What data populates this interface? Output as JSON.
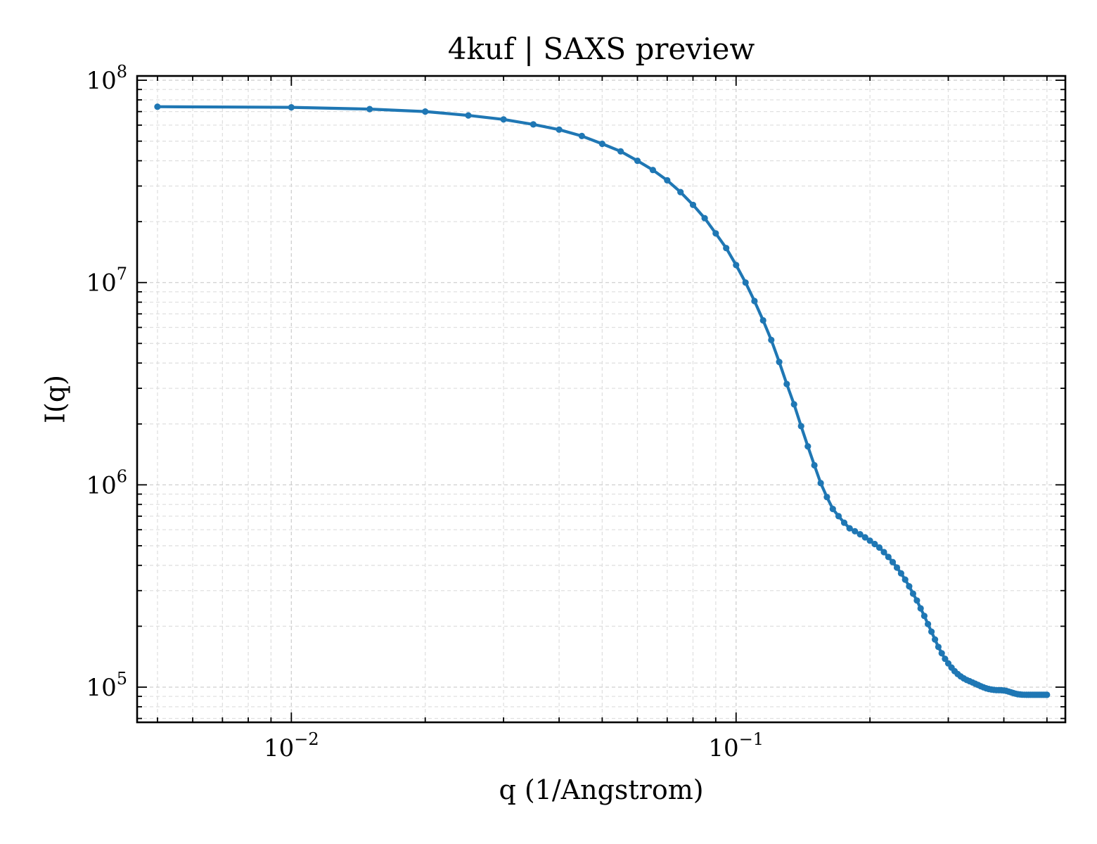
{
  "chart_data": {
    "type": "line",
    "title": "4kuf | SAXS preview",
    "xlabel": "q (1/Angstrom)",
    "ylabel": "I(q)",
    "xscale": "log",
    "yscale": "log",
    "xlim": [
      0.0045,
      0.55
    ],
    "ylim": [
      67000,
      105000000
    ],
    "grid": true,
    "legend": "none",
    "x_ticks": [
      {
        "value": 0.01,
        "base": "10",
        "exp": "−2"
      },
      {
        "value": 0.1,
        "base": "10",
        "exp": "−1"
      }
    ],
    "y_ticks": [
      {
        "value": 100000,
        "base": "10",
        "exp": "5"
      },
      {
        "value": 1000000,
        "base": "10",
        "exp": "6"
      },
      {
        "value": 10000000,
        "base": "10",
        "exp": "7"
      },
      {
        "value": 100000000,
        "base": "10",
        "exp": "8"
      }
    ],
    "series": [
      {
        "color": "#1f77b4",
        "marker": "dot",
        "x": [
          0.005,
          0.01,
          0.015,
          0.02,
          0.025,
          0.03,
          0.035,
          0.04,
          0.045,
          0.05,
          0.055,
          0.06,
          0.065,
          0.07,
          0.075,
          0.08,
          0.085,
          0.09,
          0.095,
          0.1,
          0.105,
          0.11,
          0.115,
          0.12,
          0.125,
          0.13,
          0.135,
          0.14,
          0.145,
          0.15,
          0.155,
          0.16,
          0.165,
          0.17,
          0.175,
          0.18,
          0.185,
          0.19,
          0.195,
          0.2,
          0.205,
          0.21,
          0.215,
          0.22,
          0.225,
          0.23,
          0.235,
          0.24,
          0.245,
          0.25,
          0.255,
          0.26,
          0.265,
          0.27,
          0.275,
          0.28,
          0.285,
          0.29,
          0.295,
          0.3,
          0.305,
          0.31,
          0.315,
          0.32,
          0.325,
          0.33,
          0.335,
          0.34,
          0.345,
          0.35,
          0.355,
          0.36,
          0.365,
          0.37,
          0.375,
          0.38,
          0.385,
          0.39,
          0.395,
          0.4,
          0.405,
          0.41,
          0.415,
          0.42,
          0.425,
          0.43,
          0.435,
          0.44,
          0.445,
          0.45,
          0.455,
          0.46,
          0.465,
          0.47,
          0.475,
          0.48,
          0.485,
          0.49,
          0.495,
          0.5
        ],
        "y": [
          74000000,
          73500000,
          72000000,
          70000000,
          67000000,
          64000000,
          60500000,
          57000000,
          53000000,
          48500000,
          44500000,
          40000000,
          36000000,
          32000000,
          28000000,
          24200000,
          20800000,
          17500000,
          14800000,
          12200000,
          10000000,
          8100000,
          6500000,
          5200000,
          4050000,
          3150000,
          2500000,
          1950000,
          1550000,
          1250000,
          1020000,
          870000,
          760000,
          700000,
          650000,
          610000,
          590000,
          570000,
          550000,
          530000,
          510000,
          490000,
          465000,
          440000,
          415000,
          390000,
          365000,
          340000,
          315000,
          290000,
          268000,
          245000,
          225000,
          205000,
          188000,
          172000,
          158000,
          147000,
          138000,
          131000,
          125000,
          120000,
          116000,
          113000,
          110500,
          108500,
          107000,
          105500,
          104000,
          102500,
          101000,
          99800,
          98700,
          97900,
          97300,
          96900,
          96700,
          96600,
          96500,
          96300,
          95800,
          95100,
          94300,
          93500,
          92800,
          92300,
          92000,
          91800,
          91700,
          91600,
          91600,
          91600,
          91600,
          91600,
          91600,
          91600,
          91600,
          91600,
          91600,
          91600
        ]
      }
    ]
  }
}
